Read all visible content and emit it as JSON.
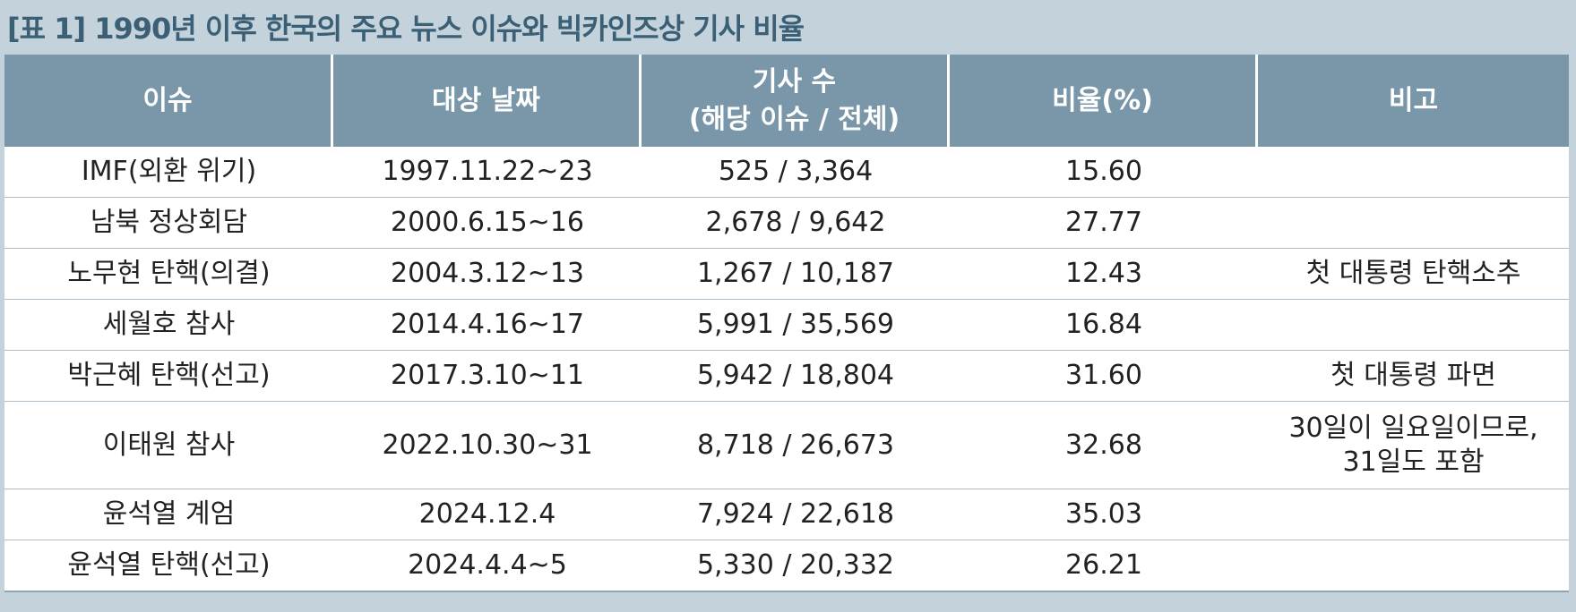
{
  "title": "[표 1] 1990년 이후 한국의 주요 뉴스 이슈와 빅카인즈상 기사 비율",
  "headers": {
    "issue": "이슈",
    "date": "대상 날짜",
    "count_line1": "기사 수",
    "count_line2": "(해당 이슈 / 전체)",
    "ratio": "비율(%)",
    "note": "비고"
  },
  "rows": [
    {
      "issue": "IMF(외환 위기)",
      "date": "1997.11.22~23",
      "count": "525 / 3,364",
      "ratio": "15.60",
      "note_line1": "",
      "note_line2": ""
    },
    {
      "issue": "남북 정상회담",
      "date": "2000.6.15~16",
      "count": "2,678 / 9,642",
      "ratio": "27.77",
      "note_line1": "",
      "note_line2": ""
    },
    {
      "issue": "노무현 탄핵(의결)",
      "date": "2004.3.12~13",
      "count": "1,267 / 10,187",
      "ratio": "12.43",
      "note_line1": "첫 대통령 탄핵소추",
      "note_line2": ""
    },
    {
      "issue": "세월호 참사",
      "date": "2014.4.16~17",
      "count": "5,991 / 35,569",
      "ratio": "16.84",
      "note_line1": "",
      "note_line2": ""
    },
    {
      "issue": "박근혜 탄핵(선고)",
      "date": "2017.3.10~11",
      "count": "5,942 / 18,804",
      "ratio": "31.60",
      "note_line1": "첫 대통령 파면",
      "note_line2": ""
    },
    {
      "issue": "이태원 참사",
      "date": "2022.10.30~31",
      "count": "8,718 / 26,673",
      "ratio": "32.68",
      "note_line1": "30일이 일요일이므로,",
      "note_line2": "31일도 포함"
    },
    {
      "issue": "윤석열 계엄",
      "date": "2024.12.4",
      "count": "7,924 / 22,618",
      "ratio": "35.03",
      "note_line1": "",
      "note_line2": ""
    },
    {
      "issue": "윤석열 탄핵(선고)",
      "date": "2024.4.4~5",
      "count": "5,330 / 20,332",
      "ratio": "26.21",
      "note_line1": "",
      "note_line2": ""
    }
  ]
}
